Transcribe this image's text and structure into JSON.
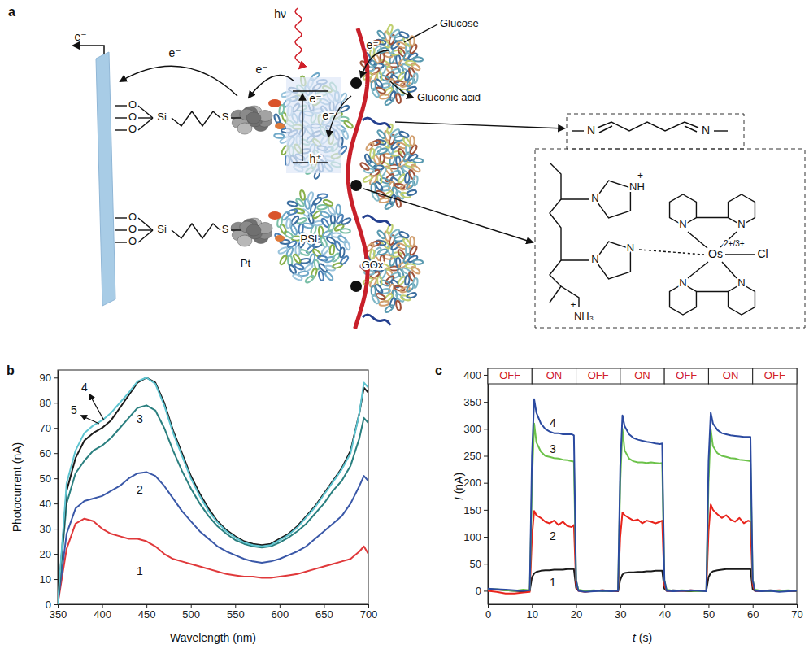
{
  "chart_data": [
    {
      "type": "line",
      "title": "b",
      "x_label": "Wavelength (nm)",
      "y_label": "Photocurrent (nA)",
      "xlim": [
        350,
        700
      ],
      "ylim": [
        0,
        93
      ],
      "xticks": [
        350,
        400,
        450,
        500,
        550,
        600,
        650,
        700
      ],
      "yticks": [
        0,
        10,
        20,
        30,
        40,
        50,
        60,
        70,
        80,
        90
      ],
      "x": [
        350,
        360,
        370,
        380,
        390,
        400,
        410,
        420,
        430,
        440,
        450,
        460,
        470,
        480,
        490,
        500,
        510,
        520,
        530,
        540,
        550,
        560,
        570,
        580,
        590,
        600,
        610,
        620,
        630,
        640,
        650,
        660,
        670,
        680,
        690,
        695,
        700
      ],
      "series": [
        {
          "name": "1",
          "color": "#e0393b",
          "values": [
            0,
            22,
            32,
            34,
            33,
            30,
            28,
            27,
            26,
            26,
            25,
            23,
            20,
            18,
            17,
            16,
            15,
            14,
            13,
            12,
            11.5,
            11,
            11,
            10.5,
            10.5,
            11,
            11.5,
            12,
            13,
            14,
            15,
            16,
            17,
            18,
            21,
            23,
            20
          ]
        },
        {
          "name": "2",
          "color": "#3a58a8",
          "values": [
            0,
            28,
            38,
            41,
            42,
            43,
            45,
            47,
            50,
            52,
            52.5,
            51,
            47,
            42,
            37,
            33,
            29,
            26,
            23,
            21,
            19.5,
            18,
            17,
            16.5,
            17,
            18,
            19.5,
            21,
            23,
            26,
            29,
            32,
            35,
            40,
            47,
            51,
            49
          ]
        },
        {
          "name": "3",
          "color": "#2a7f7f",
          "values": [
            0,
            40,
            52,
            57,
            61,
            63,
            66,
            70,
            74,
            78,
            79,
            77,
            70,
            61,
            53,
            46,
            40,
            35,
            31,
            28,
            25.5,
            24,
            23,
            22.5,
            23,
            24.5,
            26.5,
            29,
            32,
            36,
            40,
            45,
            49,
            55,
            66,
            74,
            72
          ]
        },
        {
          "name": "4",
          "color": "#1a1a1a",
          "values": [
            0,
            45,
            58,
            65,
            68,
            70,
            73,
            78,
            83,
            88,
            90,
            88,
            80,
            69,
            60,
            51,
            44,
            38,
            33,
            29.5,
            27,
            25,
            24,
            23.5,
            24,
            26,
            28,
            31,
            35,
            39,
            44,
            49,
            54,
            61,
            76,
            86,
            84
          ]
        },
        {
          "name": "5",
          "color": "#5ec4d0",
          "values": [
            0,
            48,
            61,
            68,
            71,
            73,
            76,
            80,
            84,
            88.5,
            90,
            87.5,
            79,
            68,
            59,
            50,
            43,
            37,
            32.5,
            29,
            26.5,
            24.5,
            23.5,
            23,
            23.5,
            25.5,
            27.5,
            30.5,
            34.5,
            38.5,
            43.5,
            48.5,
            53.5,
            60,
            76,
            88,
            86
          ]
        }
      ]
    },
    {
      "type": "line",
      "title": "c",
      "x_label": "t (s)",
      "y_label": "I (nA)",
      "xlim": [
        0,
        70
      ],
      "ylim": [
        -25,
        412
      ],
      "xticks": [
        0,
        10,
        20,
        30,
        40,
        50,
        60,
        70
      ],
      "yticks": [
        0,
        50,
        100,
        150,
        200,
        250,
        300,
        350,
        400
      ],
      "light_states": {
        "starts": [
          0,
          10,
          20,
          30,
          40,
          50,
          60
        ],
        "ends": [
          10,
          20,
          30,
          40,
          50,
          60,
          70
        ],
        "labels": [
          "OFF",
          "ON",
          "OFF",
          "ON",
          "OFF",
          "ON",
          "OFF"
        ]
      },
      "x": [
        0,
        2,
        4,
        6,
        8,
        9.5,
        10,
        10.5,
        11,
        12,
        13,
        14,
        15,
        16,
        17,
        18,
        19,
        19.5,
        20,
        20.5,
        22,
        24,
        26,
        28,
        29.5,
        30,
        30.5,
        31,
        32,
        33,
        34,
        35,
        36,
        37,
        38,
        39,
        39.5,
        40,
        40.5,
        42,
        44,
        46,
        48,
        49.5,
        50,
        50.5,
        51,
        52,
        53,
        54,
        55,
        56,
        57,
        58,
        59,
        59.5,
        60,
        60.5,
        62,
        64,
        66,
        68,
        70
      ],
      "series": [
        {
          "name": "1",
          "color": "#1a1a1a",
          "values": [
            3,
            2,
            1,
            0,
            -1,
            0,
            25,
            32,
            35,
            37,
            38,
            38,
            39,
            39,
            39,
            40,
            40,
            40,
            5,
            1,
            0,
            0,
            1,
            0,
            -1,
            20,
            30,
            33,
            34,
            34,
            35,
            35,
            36,
            36,
            37,
            37,
            37,
            4,
            0,
            1,
            0,
            -1,
            0,
            0,
            25,
            33,
            36,
            38,
            39,
            40,
            40,
            40,
            40,
            40,
            40,
            40,
            3,
            0,
            0,
            1,
            0,
            0,
            -1
          ]
        },
        {
          "name": "2",
          "color": "#e8241c",
          "values": [
            0,
            -2,
            -5,
            -5,
            -3,
            -2,
            100,
            148,
            140,
            135,
            128,
            125,
            130,
            122,
            128,
            120,
            118,
            122,
            10,
            0,
            -2,
            0,
            1,
            -1,
            0,
            100,
            145,
            140,
            135,
            130,
            132,
            125,
            130,
            128,
            125,
            128,
            130,
            10,
            0,
            -1,
            0,
            1,
            0,
            -1,
            110,
            160,
            150,
            142,
            135,
            140,
            132,
            128,
            135,
            125,
            130,
            128,
            10,
            0,
            -1,
            0,
            1,
            0,
            0
          ]
        },
        {
          "name": "3",
          "color": "#6cc24a",
          "values": [
            2,
            3,
            1,
            0,
            2,
            1,
            200,
            310,
            275,
            258,
            250,
            248,
            246,
            245,
            243,
            242,
            240,
            240,
            20,
            2,
            0,
            1,
            -1,
            0,
            1,
            200,
            300,
            260,
            245,
            240,
            238,
            238,
            237,
            238,
            237,
            236,
            237,
            20,
            2,
            0,
            1,
            0,
            -1,
            0,
            200,
            300,
            268,
            255,
            250,
            248,
            246,
            245,
            243,
            242,
            241,
            240,
            20,
            2,
            0,
            -1,
            0,
            1,
            0
          ]
        },
        {
          "name": "4",
          "color": "#2b4aa0",
          "values": [
            4,
            3,
            2,
            1,
            0,
            1,
            250,
            355,
            330,
            310,
            300,
            295,
            292,
            292,
            290,
            290,
            290,
            288,
            20,
            0,
            -2,
            -1,
            0,
            -1,
            0,
            230,
            325,
            305,
            290,
            283,
            280,
            278,
            276,
            275,
            273,
            272,
            273,
            20,
            0,
            -1,
            0,
            1,
            0,
            -1,
            240,
            330,
            310,
            298,
            292,
            290,
            288,
            287,
            286,
            285,
            285,
            285,
            20,
            0,
            -1,
            0,
            -2,
            -1,
            0
          ]
        }
      ]
    }
  ],
  "diagram": {
    "label": "a",
    "photon": "hν",
    "electron_labels": [
      "e⁻",
      "e⁻",
      "e⁻",
      "e⁻",
      "e⁻",
      "e⁻"
    ],
    "hole": "h⁺",
    "substrate": "Glucose",
    "product": "Gluconic acid",
    "photosystem": "PSI",
    "enzyme": "GOx",
    "catalyst": "Pt",
    "linkers": [
      {
        "oxygens": [
          "O",
          "O",
          "O"
        ],
        "silicon": "Si",
        "sulfur": "S"
      },
      {
        "oxygens": [
          "O",
          "O",
          "O"
        ],
        "silicon": "Si",
        "sulfur": "S"
      }
    ],
    "crosslinker_atoms": [
      "N",
      "N"
    ],
    "polymer": {
      "imidazole_atoms": [
        "N",
        "NH",
        "N",
        "N"
      ],
      "imidazolium_charge": "+",
      "amine": "NH₃",
      "amine_charge": "+"
    },
    "complex": {
      "metal": "Os",
      "oxidation_states": "2+/3+",
      "ligand": "Cl",
      "bipyridine_atoms": [
        "N",
        "N",
        "N",
        "N"
      ]
    }
  }
}
